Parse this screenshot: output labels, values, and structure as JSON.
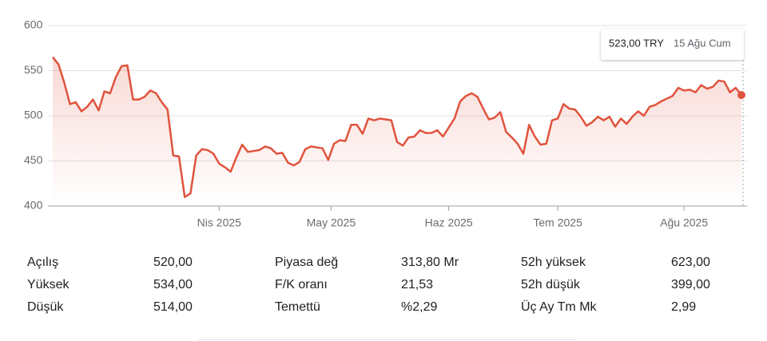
{
  "chart_data": {
    "type": "line",
    "series": [
      {
        "color": "#e0533d",
        "values": [
          565,
          557,
          537,
          513,
          515,
          505,
          510,
          518,
          506,
          527,
          525,
          543,
          555,
          556,
          518,
          518,
          521,
          528,
          525,
          515,
          507,
          456,
          455,
          410,
          414,
          456,
          463,
          462,
          458,
          447,
          443,
          438,
          454,
          468,
          460,
          461,
          462,
          466,
          464,
          458,
          459,
          448,
          445,
          449,
          463,
          466,
          465,
          464,
          451,
          469,
          473,
          472,
          490,
          490,
          480,
          497,
          495,
          497,
          496,
          495,
          471,
          467,
          476,
          477,
          484,
          481,
          481,
          484,
          477,
          487,
          497,
          516,
          522,
          525,
          521,
          508,
          496,
          498,
          504,
          482,
          476,
          469,
          458,
          490,
          477,
          468,
          469,
          495,
          497,
          513,
          508,
          507,
          499,
          489,
          493,
          499,
          495,
          499,
          488,
          497,
          491,
          499,
          505,
          500,
          510,
          512,
          516,
          519,
          522,
          531,
          528,
          529,
          526,
          534,
          530,
          532,
          539,
          538,
          526,
          531,
          523
        ]
      }
    ],
    "xlim": [
      0,
      120
    ],
    "xticks": [
      {
        "value": 29,
        "label": "Nis 2025"
      },
      {
        "value": 48.5,
        "label": "May 2025"
      },
      {
        "value": 69,
        "label": "Haz 2025"
      },
      {
        "value": 88,
        "label": "Tem 2025"
      },
      {
        "value": 110,
        "label": "Ağu 2025"
      }
    ],
    "ylim": [
      400,
      600
    ],
    "yticks": [
      400,
      450,
      500,
      550,
      600
    ],
    "grid": true,
    "tooltip": {
      "price": "523,00 TRY",
      "date": "15 Ağu Cum"
    }
  },
  "stats": [
    [
      [
        "Açılış",
        "520,00"
      ],
      [
        "Yüksek",
        "534,00"
      ],
      [
        "Düşük",
        "514,00"
      ]
    ],
    [
      [
        "Piyasa değ",
        "313,80 Mr"
      ],
      [
        "F/K oranı",
        "21,53"
      ],
      [
        "Temettü",
        "%2,29"
      ]
    ],
    [
      [
        "52h yüksek",
        "623,00"
      ],
      [
        "52h düşük",
        "399,00"
      ],
      [
        "Üç Ay Tm Mk",
        "2,99"
      ]
    ]
  ]
}
